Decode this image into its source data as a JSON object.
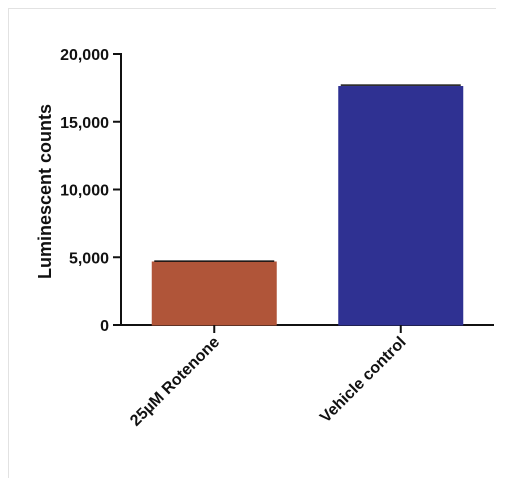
{
  "chart_data": {
    "type": "bar",
    "categories": [
      "25µM Rotenone",
      "Vehicle control"
    ],
    "values": [
      4650,
      17600
    ],
    "errors": [
      60,
      100
    ],
    "colors": [
      "#b05539",
      "#2f3192"
    ],
    "ylabel": "Luminescent counts",
    "xlabel": "",
    "ylim": [
      0,
      20000
    ],
    "yticks": [
      0,
      5000,
      10000,
      15000,
      20000
    ],
    "ytick_labels": [
      "0",
      "5,000",
      "10,000",
      "15,000",
      "20,000"
    ],
    "grid": false
  }
}
